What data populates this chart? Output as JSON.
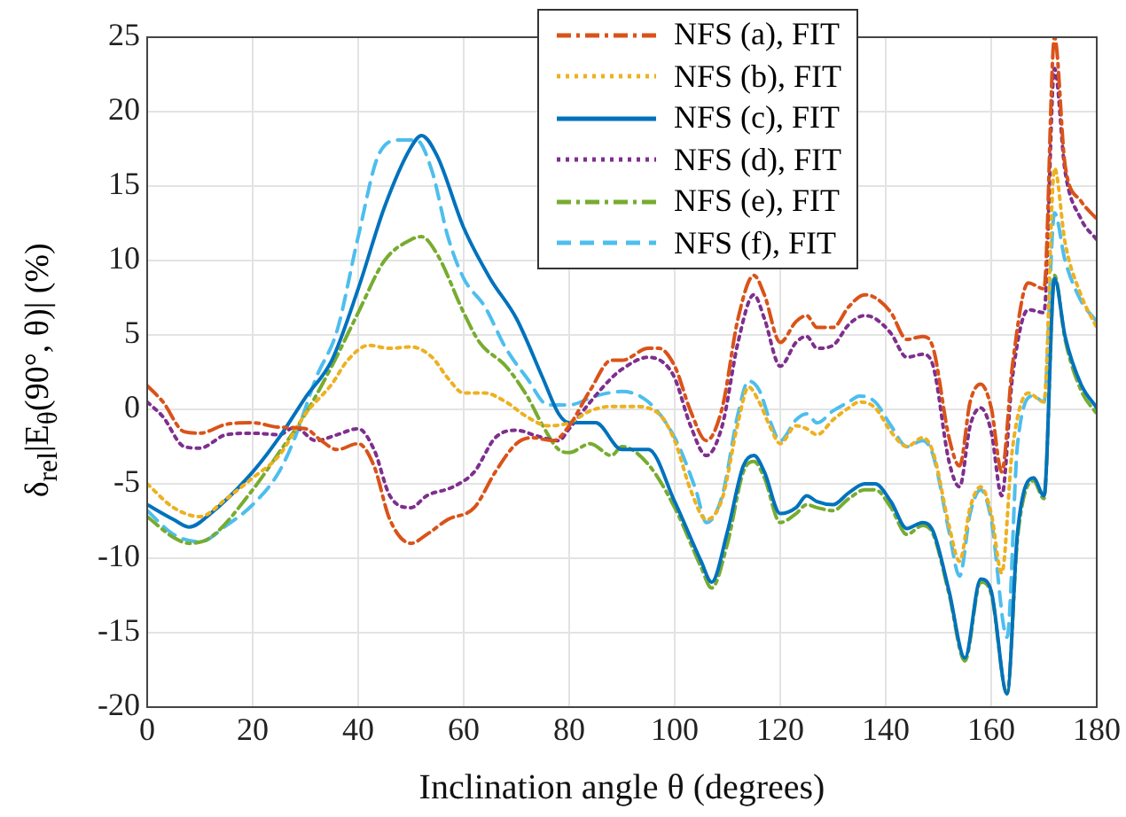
{
  "chart_data": {
    "type": "line",
    "xlabel": "Inclination angle θ (degrees)",
    "ylabel": "δ$_{rel}$|E$_{θ}$(90°, θ)| (%)",
    "xlim": [
      0,
      180
    ],
    "xticks": [
      0,
      20,
      40,
      60,
      80,
      100,
      120,
      140,
      160,
      180
    ],
    "ylim": [
      -20,
      25
    ],
    "yticks": [
      -20,
      -15,
      -10,
      -5,
      0,
      5,
      10,
      15,
      20,
      25
    ],
    "grid": true,
    "legend": "top right",
    "marker": "none",
    "series": [
      {
        "name": "NFS (a), FIT",
        "color": "#d95319",
        "line_style": "dashdot",
        "x": [
          0,
          3,
          7,
          10,
          15,
          20,
          25,
          30,
          33,
          36,
          40,
          43,
          46,
          50,
          53,
          57,
          62,
          66,
          70,
          73,
          77,
          80,
          84,
          88,
          90,
          95,
          97,
          100,
          103,
          106,
          109,
          112,
          115,
          117,
          120,
          123,
          125,
          127,
          130,
          133,
          136,
          138,
          141,
          144,
          147,
          149,
          152,
          154,
          156,
          158,
          160,
          162,
          164,
          167,
          170,
          172,
          174,
          177,
          180
        ],
        "values": [
          1.6,
          0.5,
          -1.5,
          -1.6,
          -1.0,
          -0.9,
          -1.2,
          -1.3,
          -2.1,
          -2.7,
          -2.3,
          -3.8,
          -7.4,
          -9.0,
          -8.4,
          -7.4,
          -6.6,
          -4.2,
          -2.3,
          -1.9,
          -2.1,
          -1.1,
          1.3,
          3.3,
          3.3,
          4.1,
          4.1,
          2.9,
          -0.1,
          -2.1,
          0.1,
          6.1,
          9.0,
          7.7,
          4.5,
          5.9,
          6.3,
          5.5,
          5.5,
          6.9,
          7.7,
          7.5,
          6.5,
          4.7,
          4.9,
          4.1,
          -1.9,
          -3.8,
          0.5,
          1.7,
          0.1,
          -4.2,
          2.9,
          8.5,
          8.1,
          25,
          16.4,
          14.0,
          12.8
        ]
      },
      {
        "name": "NFS (b), FIT",
        "color": "#edb120",
        "line_style": "dotted",
        "x": [
          0,
          5,
          10,
          15,
          20,
          25,
          30,
          35,
          38,
          42,
          46,
          50,
          54,
          57,
          60,
          64,
          68,
          72,
          76,
          80,
          84,
          88,
          92,
          97,
          100,
          103,
          106,
          109,
          112,
          114,
          116,
          118,
          120,
          123,
          125,
          127,
          130,
          133,
          135,
          138,
          141,
          144,
          147,
          149,
          152,
          154,
          156,
          158,
          160,
          162,
          164,
          167,
          170,
          172,
          174,
          177,
          180
        ],
        "values": [
          -5.0,
          -6.6,
          -7.2,
          -6.0,
          -4.6,
          -3.1,
          -0.3,
          1.7,
          3.3,
          4.3,
          4.1,
          4.2,
          3.5,
          2.1,
          1.1,
          1.1,
          0.5,
          -0.5,
          -1.1,
          -0.9,
          -0.1,
          0.2,
          0.2,
          -0.3,
          -2.1,
          -5.4,
          -7.4,
          -6.0,
          -0.9,
          1.5,
          0.5,
          -1.1,
          -2.3,
          -1.1,
          -1.3,
          -1.7,
          -0.7,
          0.1,
          0.5,
          0.1,
          -1.5,
          -2.5,
          -1.9,
          -2.9,
          -7.8,
          -10.2,
          -6.6,
          -5.2,
          -7.0,
          -11.0,
          -2.7,
          1.1,
          0.5,
          16.2,
          11.2,
          7.7,
          5.5
        ]
      },
      {
        "name": "NFS (c), FIT",
        "color": "#0072bd",
        "line_style": "solid",
        "x": [
          0,
          5,
          8,
          12,
          20,
          25,
          30,
          35,
          40,
          45,
          50,
          52,
          55,
          60,
          65,
          70,
          75,
          78,
          80,
          85,
          90,
          95,
          100,
          105,
          107,
          110,
          113,
          115,
          117,
          120,
          123,
          125,
          127,
          130,
          133,
          136,
          138,
          141,
          144,
          147,
          149,
          152,
          155,
          158,
          160,
          163,
          165,
          168,
          170,
          172,
          174,
          177,
          180
        ],
        "values": [
          -6.4,
          -7.4,
          -7.9,
          -7.0,
          -4.2,
          -1.9,
          0.8,
          3.3,
          8.1,
          13.6,
          17.6,
          18.4,
          17.0,
          12.2,
          8.8,
          6.1,
          2.1,
          -0.3,
          -0.9,
          -0.9,
          -2.7,
          -2.7,
          -6.2,
          -10.2,
          -11.6,
          -8.2,
          -3.8,
          -3.1,
          -4.2,
          -7.0,
          -6.6,
          -5.8,
          -6.2,
          -6.4,
          -5.6,
          -5.0,
          -5.0,
          -6.2,
          -8.0,
          -7.6,
          -8.2,
          -12.2,
          -16.7,
          -11.4,
          -12.2,
          -19.1,
          -8.2,
          -4.6,
          -5.8,
          8.8,
          4.9,
          1.7,
          0.1
        ]
      },
      {
        "name": "NFS (d), FIT",
        "color": "#7e2f8e",
        "line_style": "dotted",
        "x": [
          0,
          3,
          7,
          10,
          15,
          20,
          25,
          28,
          32,
          36,
          40,
          43,
          46,
          50,
          53,
          58,
          62,
          66,
          70,
          74,
          78,
          80,
          84,
          88,
          90,
          95,
          98,
          100,
          103,
          106,
          109,
          112,
          115,
          117,
          120,
          123,
          125,
          127,
          130,
          133,
          136,
          138,
          141,
          144,
          147,
          149,
          152,
          154,
          156,
          158,
          160,
          162,
          164,
          167,
          170,
          172,
          174,
          177,
          180
        ],
        "values": [
          0.5,
          -0.5,
          -2.5,
          -2.6,
          -1.7,
          -1.6,
          -1.7,
          -1.2,
          -2.1,
          -1.7,
          -1.3,
          -2.7,
          -5.8,
          -6.6,
          -5.8,
          -5.2,
          -4.2,
          -1.9,
          -1.4,
          -1.8,
          -2.1,
          -1.3,
          0.5,
          2.1,
          2.7,
          3.5,
          3.1,
          2.1,
          -1.1,
          -3.1,
          -1.1,
          4.5,
          7.7,
          6.1,
          2.9,
          4.5,
          4.9,
          4.1,
          4.3,
          5.7,
          6.3,
          6.1,
          5.1,
          3.5,
          3.7,
          2.9,
          -3.5,
          -5.2,
          -1.1,
          0.1,
          -1.5,
          -5.8,
          2.1,
          6.7,
          6.5,
          22.9,
          16.0,
          12.8,
          11.4
        ]
      },
      {
        "name": "NFS (e), FIT",
        "color": "#77ac30",
        "line_style": "dashdot",
        "x": [
          0,
          5,
          8,
          12,
          20,
          25,
          30,
          35,
          40,
          45,
          50,
          52,
          55,
          60,
          63,
          68,
          72,
          75,
          78,
          80,
          84,
          88,
          90,
          95,
          100,
          105,
          107,
          110,
          113,
          115,
          117,
          120,
          123,
          125,
          127,
          130,
          133,
          136,
          138,
          141,
          144,
          147,
          149,
          152,
          155,
          158,
          160,
          163,
          165,
          168,
          170,
          172,
          174,
          177,
          180
        ],
        "values": [
          -7.2,
          -8.6,
          -9.0,
          -8.6,
          -5.4,
          -2.9,
          -0.3,
          2.9,
          6.5,
          10.0,
          11.4,
          11.6,
          10.4,
          6.5,
          4.5,
          2.9,
          0.9,
          -1.1,
          -2.7,
          -2.9,
          -2.3,
          -3.1,
          -2.5,
          -3.7,
          -6.6,
          -10.6,
          -12.0,
          -9.0,
          -4.2,
          -3.5,
          -4.6,
          -7.6,
          -7.0,
          -6.4,
          -6.6,
          -6.8,
          -6.0,
          -5.4,
          -5.4,
          -6.6,
          -8.4,
          -7.8,
          -8.4,
          -12.4,
          -16.9,
          -11.6,
          -12.4,
          -19.1,
          -8.6,
          -4.8,
          -6.0,
          9.0,
          4.7,
          1.3,
          -0.3
        ]
      },
      {
        "name": "NFS (f), FIT",
        "color": "#4dbeee",
        "line_style": "dashed",
        "x": [
          0,
          5,
          10,
          15,
          20,
          25,
          28,
          32,
          36,
          40,
          44,
          48,
          51,
          54,
          57,
          60,
          64,
          68,
          72,
          76,
          80,
          85,
          90,
          95,
          100,
          104,
          106,
          109,
          112,
          114,
          116,
          118,
          120,
          123,
          125,
          127,
          130,
          133,
          135,
          138,
          141,
          144,
          147,
          149,
          152,
          154,
          156,
          158,
          160,
          163,
          165,
          168,
          170,
          172,
          174,
          177,
          180
        ],
        "values": [
          -6.8,
          -8.4,
          -8.9,
          -7.8,
          -6.4,
          -4.2,
          -1.9,
          2.1,
          5.3,
          11.6,
          17.2,
          18.1,
          18.1,
          16.0,
          11.6,
          8.8,
          6.9,
          4.1,
          2.1,
          0.3,
          0.3,
          0.9,
          1.2,
          0.5,
          -1.9,
          -5.4,
          -7.6,
          -5.8,
          -0.3,
          1.9,
          1.3,
          -0.7,
          -2.1,
          -0.7,
          -0.3,
          -0.9,
          -0.1,
          0.5,
          0.9,
          0.5,
          -1.1,
          -2.5,
          -2.1,
          -3.1,
          -8.2,
          -11.2,
          -7.0,
          -5.4,
          -7.4,
          -15.3,
          -2.3,
          0.9,
          0.5,
          13.2,
          10.0,
          7.3,
          5.9
        ]
      }
    ]
  }
}
